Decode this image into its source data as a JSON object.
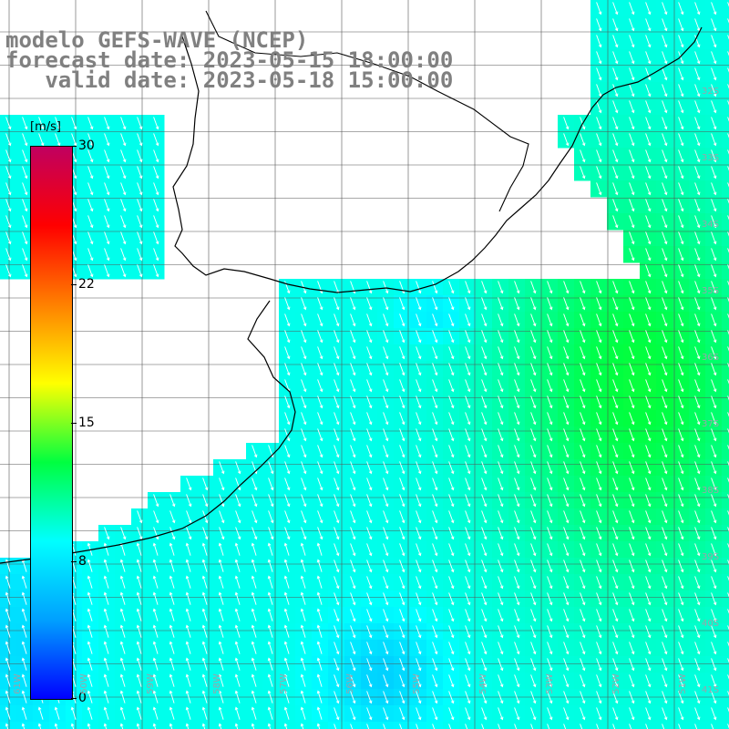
{
  "header": {
    "line1": "modelo GEFS-WAVE (NCEP)",
    "line2": "forecast date: 2023-05-15 18:00:00",
    "line3": "   valid date: 2023-05-18 15:00:00"
  },
  "colorbar": {
    "unit": "[m/s]",
    "min": 0,
    "max": 30,
    "ticks": [
      "30",
      "22",
      "15",
      "8",
      "0"
    ],
    "colors": [
      "#0000ff",
      "#00a0ff",
      "#00ffff",
      "#00ff40",
      "#ffff00",
      "#ff8000",
      "#ff0000",
      "#c00060"
    ]
  },
  "grid_labels": {
    "latitudes": [
      "32S",
      "33S",
      "34S",
      "35S",
      "36S",
      "37S",
      "38S",
      "39S",
      "40S",
      "41S"
    ],
    "longitudes": [
      "61W",
      "60W",
      "59W",
      "58W",
      "57W",
      "56W",
      "55W",
      "54W",
      "53W",
      "52W",
      "51W"
    ]
  },
  "icons": {
    "wind_arrow": "wind-vector-arrow"
  }
}
